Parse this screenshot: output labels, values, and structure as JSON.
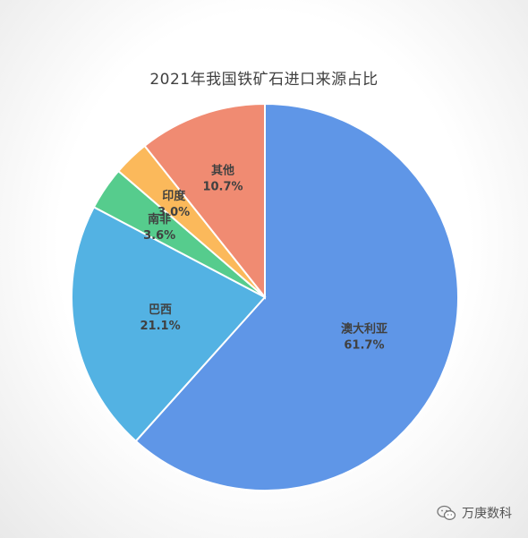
{
  "chart_data": {
    "type": "pie",
    "title": "2021年我国铁矿石进口来源占比",
    "slices": [
      {
        "label": "澳大利亚",
        "value": 61.7,
        "display": "61.7%",
        "color": "#5f96e7"
      },
      {
        "label": "巴西",
        "value": 21.1,
        "display": "21.1%",
        "color": "#53b2e3"
      },
      {
        "label": "南非",
        "value": 3.6,
        "display": "3.6%",
        "color": "#56cc8d"
      },
      {
        "label": "印度",
        "value": 3.0,
        "display": "3.0%",
        "color": "#fbb95b"
      },
      {
        "label": "其他",
        "value": 10.7,
        "display": "10.7%",
        "color": "#f08b72"
      }
    ],
    "start": "12 o'clock",
    "direction": "clockwise"
  },
  "watermark": {
    "text": "万庚数科",
    "icon": "wechat-icon"
  }
}
